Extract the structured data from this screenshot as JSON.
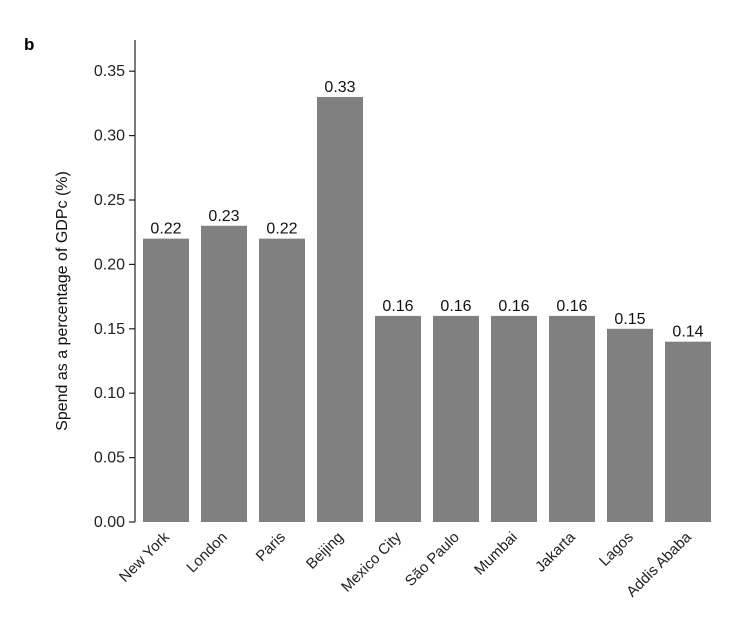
{
  "panel_label": "b",
  "chart_data": {
    "type": "bar",
    "title": "",
    "xlabel": "",
    "ylabel": "Spend as a percentage of GDPc (%)",
    "categories": [
      "New York",
      "London",
      "Paris",
      "Beijing",
      "Mexico City",
      "São Paulo",
      "Mumbai",
      "Jakarta",
      "Lagos",
      "Addis Ababa"
    ],
    "values": [
      0.22,
      0.23,
      0.22,
      0.33,
      0.16,
      0.16,
      0.16,
      0.16,
      0.15,
      0.14
    ],
    "value_labels": [
      "0.22",
      "0.23",
      "0.22",
      "0.33",
      "0.16",
      "0.16",
      "0.16",
      "0.16",
      "0.15",
      "0.14"
    ],
    "ylim": [
      0,
      0.375
    ],
    "yticks": [
      0.0,
      0.05,
      0.1,
      0.15,
      0.2,
      0.25,
      0.3,
      0.35
    ],
    "ytick_labels": [
      "0.00",
      "0.05",
      "0.10",
      "0.15",
      "0.20",
      "0.25",
      "0.30",
      "0.35"
    ],
    "grid": false,
    "legend": "none",
    "bar_color": "#808080"
  }
}
